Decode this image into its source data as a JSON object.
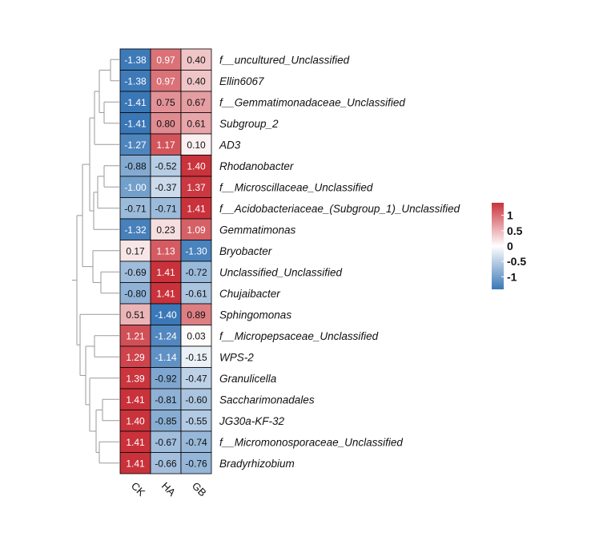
{
  "chart_data": {
    "type": "heatmap",
    "columns": [
      "CK",
      "HA",
      "GB"
    ],
    "rows": [
      {
        "label": "f__uncultured_Unclassified",
        "values": [
          -1.38,
          0.97,
          0.4
        ],
        "display": [
          "-1.38",
          "0.97",
          "0.40"
        ]
      },
      {
        "label": "Ellin6067",
        "values": [
          -1.38,
          0.97,
          0.4
        ],
        "display": [
          "-1.38",
          "0.97",
          "0.40"
        ]
      },
      {
        "label": "f__Gemmatimonadaceae_Unclassified",
        "values": [
          -1.41,
          0.75,
          0.67
        ],
        "display": [
          "-1.41",
          "0.75",
          "0.67"
        ]
      },
      {
        "label": "Subgroup_2",
        "values": [
          -1.41,
          0.8,
          0.61
        ],
        "display": [
          "-1.41",
          "0.80",
          "0.61"
        ]
      },
      {
        "label": "AD3",
        "values": [
          -1.27,
          1.17,
          0.1
        ],
        "display": [
          "-1.27",
          "1.17",
          "0.10"
        ]
      },
      {
        "label": "Rhodanobacter",
        "values": [
          -0.88,
          -0.52,
          1.4
        ],
        "display": [
          "-0.88",
          "-0.52",
          "1.40"
        ]
      },
      {
        "label": "f__Microscillaceae_Unclassified",
        "values": [
          -1.0,
          -0.37,
          1.37
        ],
        "display": [
          "-1.00",
          "-0.37",
          "1.37"
        ]
      },
      {
        "label": "f__Acidobacteriaceae_(Subgroup_1)_Unclassified",
        "values": [
          -0.71,
          -0.71,
          1.41
        ],
        "display": [
          "-0.71",
          "-0.71",
          "1.41"
        ]
      },
      {
        "label": "Gemmatimonas",
        "values": [
          -1.32,
          0.23,
          1.09
        ],
        "display": [
          "-1.32",
          "0.23",
          "1.09"
        ]
      },
      {
        "label": "Bryobacter",
        "values": [
          0.17,
          1.13,
          -1.3
        ],
        "display": [
          "0.17",
          "1.13",
          "-1.30"
        ]
      },
      {
        "label": "Unclassified_Unclassified",
        "values": [
          -0.69,
          1.41,
          -0.72
        ],
        "display": [
          "-0.69",
          "1.41",
          "-0.72"
        ]
      },
      {
        "label": "Chujaibacter",
        "values": [
          -0.8,
          1.41,
          -0.61
        ],
        "display": [
          "-0.80",
          "1.41",
          "-0.61"
        ]
      },
      {
        "label": "Sphingomonas",
        "values": [
          0.51,
          -1.4,
          0.89
        ],
        "display": [
          "0.51",
          "-1.40",
          "0.89"
        ]
      },
      {
        "label": "f__Micropepsaceae_Unclassified",
        "values": [
          1.21,
          -1.24,
          0.03
        ],
        "display": [
          "1.21",
          "-1.24",
          "0.03"
        ]
      },
      {
        "label": "WPS-2",
        "values": [
          1.29,
          -1.14,
          -0.15
        ],
        "display": [
          "1.29",
          "-1.14",
          "-0.15"
        ]
      },
      {
        "label": "Granulicella",
        "values": [
          1.39,
          -0.92,
          -0.47
        ],
        "display": [
          "1.39",
          "-0.92",
          "-0.47"
        ]
      },
      {
        "label": "Saccharimonadales",
        "values": [
          1.41,
          -0.81,
          -0.6
        ],
        "display": [
          "1.41",
          "-0.81",
          "-0.60"
        ]
      },
      {
        "label": "JG30a-KF-32",
        "values": [
          1.4,
          -0.85,
          -0.55
        ],
        "display": [
          "1.40",
          "-0.85",
          "-0.55"
        ]
      },
      {
        "label": "f__Micromonosporaceae_Unclassified",
        "values": [
          1.41,
          -0.67,
          -0.74
        ],
        "display": [
          "1.41",
          "-0.67",
          "-0.74"
        ]
      },
      {
        "label": "Bradyrhizobium",
        "values": [
          1.41,
          -0.66,
          -0.76
        ],
        "display": [
          "1.41",
          "-0.66",
          "-0.76"
        ]
      }
    ],
    "color_scale": {
      "min": -1.41,
      "max": 1.41,
      "low_color": "#3a77b6",
      "mid_color": "#ffffff",
      "high_color": "#c9323b"
    },
    "legend": {
      "placement": "right",
      "ticks": [
        {
          "value": 1,
          "label": "1"
        },
        {
          "value": 0.5,
          "label": "0.5"
        },
        {
          "value": 0,
          "label": "0"
        },
        {
          "value": -0.5,
          "label": "-0.5"
        },
        {
          "value": -1,
          "label": "-1"
        }
      ]
    },
    "row_dendrogram": "left"
  }
}
